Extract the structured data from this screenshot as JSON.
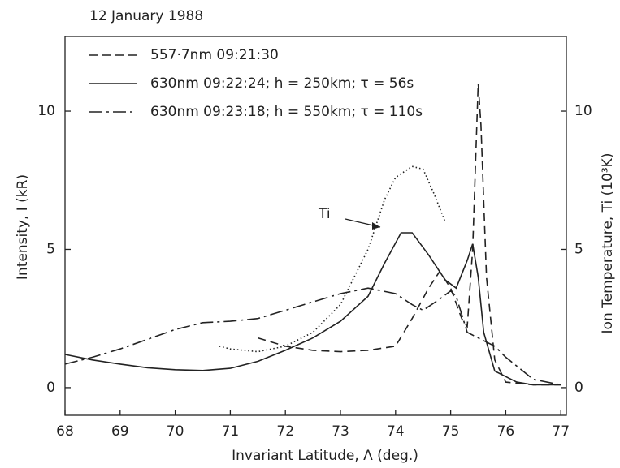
{
  "chart_data": {
    "type": "line",
    "title": "12 January 1988",
    "xlabel": "Invariant Latitude, Λ (deg.)",
    "ylabel": "Intensity, I (kR)",
    "y2label": "Ion Temperature, Ti (10³K)",
    "xlim": [
      68,
      77.1
    ],
    "xticks": [
      68,
      69,
      70,
      71,
      72,
      73,
      74,
      75,
      76,
      77
    ],
    "ylim": [
      -1,
      12.7
    ],
    "yticks": [
      0,
      5,
      10
    ],
    "y2lim": [
      -1,
      12.7
    ],
    "y2ticks": [
      0,
      5,
      10
    ],
    "grid": false,
    "series": [
      {
        "name": "557·7nm  09:21:30",
        "color": "#222222",
        "style": "dashed",
        "x": [
          71.5,
          72,
          72.5,
          73,
          73.5,
          74,
          74.3,
          74.6,
          74.8,
          75,
          75.2,
          75.3,
          75.4,
          75.5,
          75.55,
          75.65,
          75.8,
          76,
          76.5,
          77
        ],
        "values": [
          1.8,
          1.5,
          1.35,
          1.3,
          1.35,
          1.5,
          2.5,
          3.6,
          4.2,
          3.6,
          2.5,
          2.2,
          5,
          11,
          9.5,
          4,
          1,
          0.2,
          0.1,
          0.1
        ]
      },
      {
        "name": "630nm  09:22:24; h = 250km; τ = 56s",
        "color": "#222222",
        "style": "solid",
        "x": [
          68,
          68.5,
          69,
          69.5,
          70,
          70.5,
          71,
          71.5,
          72,
          72.5,
          73,
          73.5,
          73.8,
          74.1,
          74.3,
          74.6,
          74.9,
          75.1,
          75.3,
          75.4,
          75.5,
          75.6,
          75.8,
          76.2,
          76.5,
          77
        ],
        "values": [
          1.2,
          1.0,
          0.85,
          0.72,
          0.65,
          0.62,
          0.7,
          0.95,
          1.35,
          1.8,
          2.4,
          3.3,
          4.5,
          5.6,
          5.6,
          4.8,
          3.9,
          3.6,
          4.6,
          5.2,
          4.0,
          2.0,
          0.6,
          0.2,
          0.1,
          0.1
        ]
      },
      {
        "name": "630nm  09:23:18; h = 550km; τ = 110s",
        "color": "#222222",
        "style": "dashdot",
        "x": [
          68,
          68.5,
          69,
          69.5,
          70,
          70.5,
          71,
          71.5,
          72,
          72.5,
          73,
          73.5,
          74,
          74.3,
          74.5,
          74.8,
          75,
          75.1,
          75.3,
          75.5,
          75.8,
          76,
          76.5,
          77
        ],
        "values": [
          0.85,
          1.1,
          1.4,
          1.75,
          2.1,
          2.35,
          2.4,
          2.5,
          2.8,
          3.1,
          3.4,
          3.6,
          3.4,
          3.0,
          2.8,
          3.2,
          3.5,
          3.3,
          2.0,
          1.8,
          1.5,
          1.1,
          0.3,
          0.1
        ]
      },
      {
        "name": "Ti",
        "color": "#222222",
        "style": "dotted",
        "axis": "y2",
        "x": [
          70.8,
          71,
          71.5,
          72,
          72.5,
          73,
          73.5,
          73.8,
          74,
          74.3,
          74.5,
          74.7,
          74.9
        ],
        "values": [
          1.5,
          1.4,
          1.3,
          1.5,
          2.0,
          3.0,
          5.0,
          6.8,
          7.6,
          8.0,
          7.9,
          7.0,
          6.0
        ]
      }
    ]
  }
}
